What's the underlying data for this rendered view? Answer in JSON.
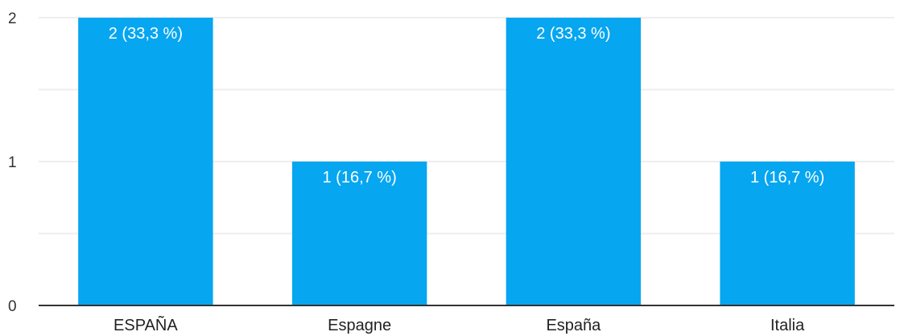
{
  "chart_data": {
    "type": "bar",
    "categories": [
      "ESPAÑA",
      "Espagne",
      "España",
      "Italia"
    ],
    "values": [
      2,
      1,
      2,
      1
    ],
    "data_labels": [
      "2 (33,3 %)",
      "1 (16,7 %)",
      "2 (33,3 %)",
      "1 (16,7 %)"
    ],
    "y_ticks": [
      "0",
      "1",
      "2"
    ],
    "ylim": [
      0,
      2
    ],
    "grid": true,
    "bar_color": "#06a6f1",
    "grid_color": "#eeeeee",
    "axis_color": "#333333"
  }
}
